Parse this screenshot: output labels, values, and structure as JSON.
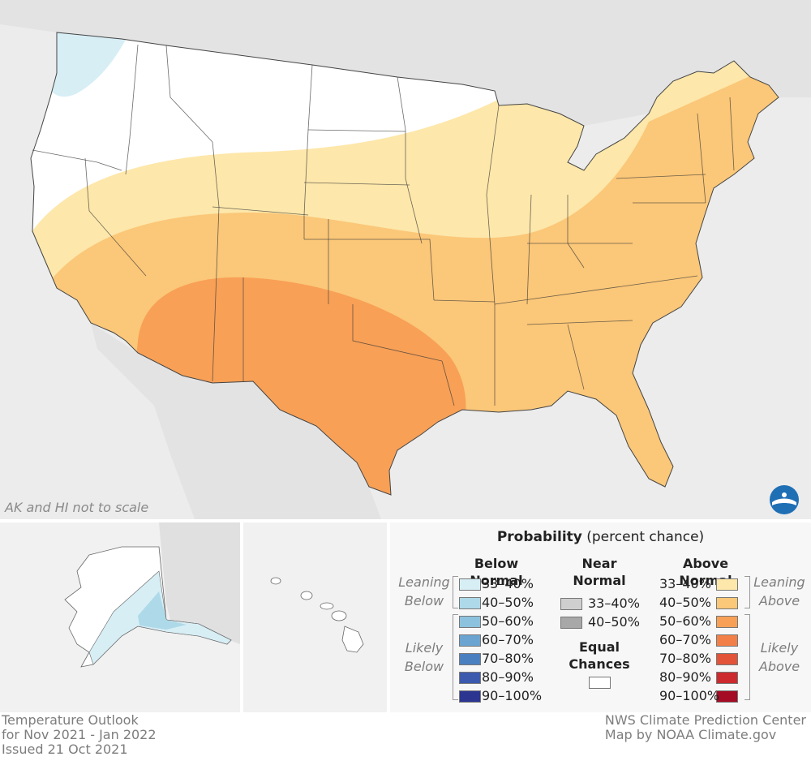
{
  "map": {
    "scale_note": "AK and HI not to scale",
    "logo_icon": "noaa-logo-icon",
    "colors": {
      "background": "#ececec",
      "land": "#ffffff",
      "below_33_40": "#d7eef5",
      "above_33_40": "#fde7aa",
      "above_40_50": "#fbc778",
      "above_50_60": "#f8a056",
      "ak_below_40_50": "#aed9e9"
    }
  },
  "legend": {
    "title_bold": "Probability",
    "title_rest": " (percent chance)",
    "columns": {
      "below": "Below Normal",
      "near_line1": "Near",
      "near_line2": "Normal",
      "above": "Above Normal",
      "equal_line1": "Equal",
      "equal_line2": "Chances"
    },
    "side_labels": {
      "leaning_below_1": "Leaning",
      "leaning_below_2": "Below",
      "likely_below_1": "Likely",
      "likely_below_2": "Below",
      "leaning_above_1": "Leaning",
      "leaning_above_2": "Above",
      "likely_above_1": "Likely",
      "likely_above_2": "Above"
    },
    "below": [
      {
        "label": "33–40%",
        "color": "#d7eef5"
      },
      {
        "label": "40–50%",
        "color": "#aed9e9"
      },
      {
        "label": "50–60%",
        "color": "#8cc2dd"
      },
      {
        "label": "60–70%",
        "color": "#6ba4d1"
      },
      {
        "label": "70–80%",
        "color": "#4b80c0"
      },
      {
        "label": "80–90%",
        "color": "#3b5aae"
      },
      {
        "label": "90–100%",
        "color": "#2c3590"
      }
    ],
    "near": [
      {
        "label": "33–40%",
        "color": "#cfcfcf"
      },
      {
        "label": "40–50%",
        "color": "#a8a8a8"
      }
    ],
    "above": [
      {
        "label": "33–40%",
        "color": "#fde7aa"
      },
      {
        "label": "40–50%",
        "color": "#fbc778"
      },
      {
        "label": "50–60%",
        "color": "#f8a056"
      },
      {
        "label": "60–70%",
        "color": "#f27f48"
      },
      {
        "label": "70–80%",
        "color": "#e2533a"
      },
      {
        "label": "80–90%",
        "color": "#cc2a2e"
      },
      {
        "label": "90–100%",
        "color": "#a50b24"
      }
    ],
    "equal_color": "#ffffff"
  },
  "footer": {
    "left_line1": "Temperature Outlook",
    "left_line2": "for Nov 2021 - Jan 2022",
    "left_line3": "Issued 21 Oct 2021",
    "right_line1": "NWS Climate Prediction Center",
    "right_line2": "Map by NOAA Climate.gov"
  }
}
